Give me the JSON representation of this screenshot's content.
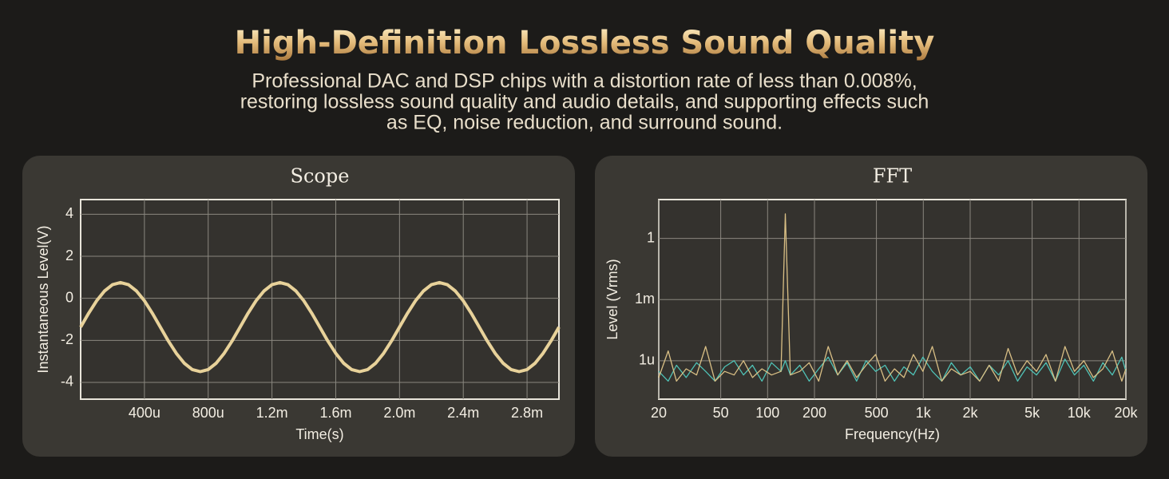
{
  "header": {
    "title": "High-Definition Lossless Sound Quality",
    "subtitle": [
      "Professional DAC and DSP chips with a distortion rate of less than 0.008%,",
      "restoring lossless sound quality and audio details, and supporting effects such",
      "as EQ, noise reduction, and surround sound."
    ]
  },
  "chart_data": [
    {
      "type": "line",
      "title": "Scope",
      "x_label": "Time(s)",
      "y_label": "Instantaneous Level(V)",
      "grid": true,
      "xlim": [
        0,
        0.003
      ],
      "ylim": [
        -4.8,
        4.7
      ],
      "xticks": [
        {
          "value": 0.0004,
          "label": "400u"
        },
        {
          "value": 0.0008,
          "label": "800u"
        },
        {
          "value": 0.0012,
          "label": "1.2m"
        },
        {
          "value": 0.0016,
          "label": "1.6m"
        },
        {
          "value": 0.002,
          "label": "2.0m"
        },
        {
          "value": 0.0024,
          "label": "2.4m"
        },
        {
          "value": 0.0028,
          "label": "2.8m"
        }
      ],
      "yticks": [
        -4,
        -2,
        0,
        2,
        4
      ],
      "x": [
        0,
        5e-05,
        0.0001,
        0.00015,
        0.0002,
        0.00025,
        0.0003,
        0.00035,
        0.0004,
        0.00045,
        0.0005,
        0.00055,
        0.0006,
        0.00065,
        0.0007,
        0.00075,
        0.0008,
        0.00085,
        0.0009,
        0.00095,
        0.001,
        0.00105,
        0.0011,
        0.00115,
        0.0012,
        0.00125,
        0.0013,
        0.00135,
        0.0014,
        0.00145,
        0.0015,
        0.00155,
        0.0016,
        0.00165,
        0.0017,
        0.00175,
        0.0018,
        0.00185,
        0.0019,
        0.00195,
        0.002,
        0.00205,
        0.0021,
        0.00215,
        0.0022,
        0.00225,
        0.0023,
        0.00235,
        0.0024,
        0.00245,
        0.0025,
        0.00255,
        0.0026,
        0.00265,
        0.0027,
        0.00275,
        0.0028,
        0.00285,
        0.0029,
        0.00295,
        0.003
      ],
      "series": [
        {
          "color": "#e8d29a",
          "values": [
            -1.37,
            -0.71,
            -0.12,
            0.35,
            0.65,
            0.75,
            0.65,
            0.35,
            -0.12,
            -0.71,
            -1.37,
            -2.03,
            -2.62,
            -3.09,
            -3.39,
            -3.49,
            -3.39,
            -3.09,
            -2.62,
            -2.03,
            -1.37,
            -0.71,
            -0.12,
            0.35,
            0.65,
            0.75,
            0.65,
            0.35,
            -0.12,
            -0.71,
            -1.37,
            -2.03,
            -2.62,
            -3.09,
            -3.39,
            -3.49,
            -3.39,
            -3.09,
            -2.62,
            -2.03,
            -1.37,
            -0.71,
            -0.12,
            0.35,
            0.65,
            0.75,
            0.65,
            0.35,
            -0.12,
            -0.71,
            -1.37,
            -2.03,
            -2.62,
            -3.09,
            -3.39,
            -3.49,
            -3.39,
            -3.09,
            -2.62,
            -2.03,
            -1.37
          ]
        }
      ]
    },
    {
      "type": "line",
      "title": "FFT",
      "x_label": "Frequency(Hz)",
      "y_label": "Level (Vrms)",
      "grid": true,
      "xscale": "log",
      "yscale": "log",
      "xlim": [
        20,
        20000
      ],
      "ylim": [
        1.3e-08,
        80
      ],
      "xticks": [
        20,
        50,
        100,
        200,
        500,
        {
          "value": 1000,
          "label": "1k"
        },
        {
          "value": 2000,
          "label": "2k"
        },
        {
          "value": 5000,
          "label": "5k"
        },
        {
          "value": 10000,
          "label": "10k"
        },
        {
          "value": 20000,
          "label": "20k"
        }
      ],
      "yticks": [
        1,
        {
          "value": 0.001,
          "label": "1m"
        },
        {
          "value": 1e-06,
          "label": "1u"
        }
      ],
      "x": [
        20,
        23,
        26,
        30,
        35,
        40,
        46,
        53,
        61,
        70,
        80,
        92,
        106,
        122,
        130,
        140,
        161,
        185,
        213,
        245,
        282,
        324,
        373,
        429,
        494,
        568,
        653,
        751,
        864,
        994,
        1143,
        1315,
        1513,
        1740,
        2002,
        2303,
        2649,
        3047,
        3505,
        4032,
        4638,
        5336,
        6138,
        7061,
        8123,
        9345,
        10750,
        12367,
        14227,
        16366,
        18827,
        20000
      ],
      "series": [
        {
          "color": "#4fc1b5",
          "values": [
            3e-07,
            1e-07,
            6e-07,
            1.5e-07,
            8e-07,
            3e-07,
            1e-07,
            5e-07,
            1e-06,
            2e-07,
            6e-07,
            1e-07,
            8e-07,
            3e-07,
            1e-06,
            2e-07,
            6e-07,
            1e-07,
            4e-07,
            1.5e-06,
            2e-07,
            8e-07,
            1e-07,
            1e-06,
            3e-07,
            6e-07,
            1e-07,
            5e-07,
            2e-07,
            1.5e-06,
            3e-07,
            1e-07,
            8e-07,
            2e-07,
            5e-07,
            1e-07,
            6e-07,
            2e-07,
            1e-06,
            1e-07,
            5e-07,
            2e-07,
            8e-07,
            1e-07,
            1.2e-06,
            2e-07,
            6e-07,
            1e-07,
            8e-07,
            2e-07,
            1.5e-06,
            3e-07
          ]
        },
        {
          "color": "#d9bf85",
          "values": [
            1.5e-07,
            3e-06,
            1e-07,
            4e-07,
            2e-07,
            5e-06,
            1e-07,
            3e-07,
            2e-07,
            1e-06,
            1.5e-07,
            4e-07,
            2e-07,
            3e-07,
            16,
            2e-07,
            3e-07,
            8e-07,
            1e-07,
            5e-06,
            2e-07,
            1e-06,
            1.5e-07,
            6e-07,
            2e-06,
            1e-07,
            4e-07,
            1.5e-07,
            2e-06,
            3e-07,
            5e-06,
            1e-07,
            4e-07,
            2e-07,
            3e-07,
            1e-07,
            6e-07,
            1e-07,
            4e-06,
            2e-07,
            1e-06,
            3e-07,
            2e-06,
            1e-07,
            5e-06,
            3e-07,
            1e-06,
            1.5e-07,
            4e-07,
            3e-06,
            1e-07,
            4e-07
          ]
        }
      ]
    }
  ]
}
